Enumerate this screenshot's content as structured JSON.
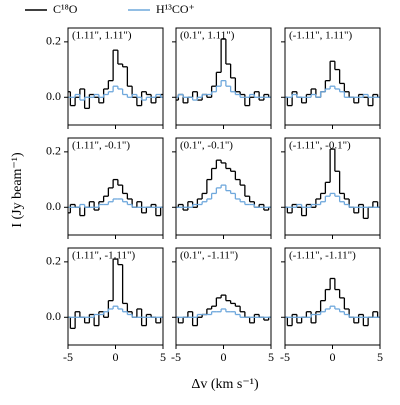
{
  "figure": {
    "xlabel": "Δv (km s⁻¹)",
    "ylabel": "I (Jy beam⁻¹)"
  },
  "chart_data": [
    {
      "type": "line",
      "drawstyle": "steps-mid",
      "title": "(1.11\", 1.11\")",
      "x": [
        -5,
        -4.5,
        -4,
        -3.5,
        -3,
        -2.5,
        -2,
        -1.5,
        -1,
        -0.5,
        0,
        0.5,
        1,
        1.5,
        2,
        2.5,
        3,
        3.5,
        4,
        4.5,
        5
      ],
      "series": [
        {
          "name": "C¹⁸O",
          "color": "#000000",
          "values": [
            0.02,
            -0.03,
            0.0,
            0.03,
            -0.04,
            0.01,
            0.0,
            -0.02,
            0.03,
            0.06,
            0.17,
            0.12,
            0.11,
            0.04,
            0.0,
            -0.03,
            0.02,
            0.01,
            -0.02,
            0.0,
            0.01
          ]
        },
        {
          "name": "H¹³CO⁺",
          "color": "#6fa8dc",
          "values": [
            0,
            0,
            0.01,
            -0.01,
            0,
            0,
            0.01,
            0,
            0.01,
            0.02,
            0.04,
            0.03,
            0.01,
            0,
            0.01,
            0,
            -0.01,
            0,
            0,
            0.01,
            0
          ]
        }
      ],
      "xlim": [
        -5,
        5
      ],
      "ylim": [
        -0.1,
        0.25
      ],
      "xticks": [
        -5,
        0,
        5
      ],
      "yticks": [
        {
          "value": 0,
          "label": "0.0"
        },
        0.2
      ]
    },
    {
      "type": "line",
      "drawstyle": "steps-mid",
      "title": "(0.1\", 1.11\")",
      "x": [
        -5,
        -4.5,
        -4,
        -3.5,
        -3,
        -2.5,
        -2,
        -1.5,
        -1,
        -0.5,
        0,
        0.5,
        1,
        1.5,
        2,
        2.5,
        3,
        3.5,
        4,
        4.5,
        5
      ],
      "series": [
        {
          "name": "C¹⁸O",
          "color": "#000000",
          "values": [
            -0.01,
            0.01,
            -0.02,
            0.0,
            0.02,
            -0.01,
            0.01,
            0.0,
            0.04,
            0.09,
            0.21,
            0.12,
            0.07,
            0.02,
            0.01,
            -0.03,
            0.0,
            0.02,
            -0.01,
            0.01,
            0.0
          ]
        },
        {
          "name": "H¹³CO⁺",
          "color": "#6fa8dc",
          "values": [
            0,
            0.01,
            0,
            0,
            -0.01,
            0,
            0.01,
            0.01,
            0.02,
            0.04,
            0.06,
            0.04,
            0.02,
            0.01,
            0,
            0,
            0.01,
            0,
            0,
            0,
            0
          ]
        }
      ],
      "xlim": [
        -5,
        5
      ],
      "ylim": [
        -0.1,
        0.25
      ],
      "xticks": [
        -5,
        0,
        5
      ],
      "yticks": [
        {
          "value": 0,
          "label": "0.0"
        },
        0.2
      ]
    },
    {
      "type": "line",
      "drawstyle": "steps-mid",
      "title": "(-1.11\", 1.11\")",
      "x": [
        -5,
        -4.5,
        -4,
        -3.5,
        -3,
        -2.5,
        -2,
        -1.5,
        -1,
        -0.5,
        0,
        0.5,
        1,
        1.5,
        2,
        2.5,
        3,
        3.5,
        4,
        4.5,
        5
      ],
      "series": [
        {
          "name": "C¹⁸O",
          "color": "#000000",
          "values": [
            0.0,
            -0.03,
            0.02,
            0.0,
            -0.02,
            0.01,
            0.03,
            0.0,
            0.02,
            0.06,
            0.13,
            0.1,
            0.05,
            0.02,
            0.0,
            -0.02,
            0.01,
            0.0,
            -0.03,
            0.01,
            0.0
          ]
        },
        {
          "name": "H¹³CO⁺",
          "color": "#6fa8dc",
          "values": [
            0,
            0,
            0.01,
            0,
            0,
            0,
            0.01,
            0,
            0.02,
            0.03,
            0.04,
            0.03,
            0.02,
            0,
            0,
            0,
            0,
            0.01,
            0,
            0,
            0
          ]
        }
      ],
      "xlim": [
        -5,
        5
      ],
      "ylim": [
        -0.1,
        0.25
      ],
      "xticks": [
        -5,
        0,
        5
      ],
      "yticks": [
        {
          "value": 0,
          "label": "0.0"
        },
        0.2
      ]
    },
    {
      "type": "line",
      "drawstyle": "steps-mid",
      "title": "(1.11\", -0.1\")",
      "x": [
        -5,
        -4.5,
        -4,
        -3.5,
        -3,
        -2.5,
        -2,
        -1.5,
        -1,
        -0.5,
        0,
        0.5,
        1,
        1.5,
        2,
        2.5,
        3,
        3.5,
        4,
        4.5,
        5
      ],
      "series": [
        {
          "name": "C¹⁸O",
          "color": "#000000",
          "values": [
            -0.02,
            0.01,
            0.0,
            -0.03,
            0.0,
            0.02,
            -0.01,
            0.02,
            0.04,
            0.07,
            0.1,
            0.08,
            0.05,
            0.03,
            0.0,
            0.02,
            -0.02,
            0.0,
            0.01,
            -0.03,
            0.0
          ]
        },
        {
          "name": "H¹³CO⁺",
          "color": "#6fa8dc",
          "values": [
            0,
            0,
            0,
            0.01,
            0,
            0,
            0,
            0.01,
            0.01,
            0.02,
            0.03,
            0.03,
            0.02,
            0.01,
            0,
            0,
            0,
            0,
            0,
            0,
            0
          ]
        }
      ],
      "xlim": [
        -5,
        5
      ],
      "ylim": [
        -0.1,
        0.25
      ],
      "xticks": [
        -5,
        0,
        5
      ],
      "yticks": [
        {
          "value": 0,
          "label": "0.0"
        },
        0.2
      ]
    },
    {
      "type": "line",
      "drawstyle": "steps-mid",
      "title": "(0.1\", -0.1\")",
      "x": [
        -5,
        -4.5,
        -4,
        -3.5,
        -3,
        -2.5,
        -2,
        -1.5,
        -1,
        -0.5,
        0,
        0.5,
        1,
        1.5,
        2,
        2.5,
        3,
        3.5,
        4,
        4.5,
        5
      ],
      "series": [
        {
          "name": "C¹⁸O",
          "color": "#000000",
          "values": [
            0.0,
            0.01,
            -0.01,
            0.02,
            0.0,
            0.03,
            0.05,
            0.1,
            0.14,
            0.17,
            0.16,
            0.14,
            0.13,
            0.1,
            0.08,
            0.04,
            0.02,
            0.0,
            0.01,
            -0.01,
            0.0
          ]
        },
        {
          "name": "H¹³CO⁺",
          "color": "#6fa8dc",
          "values": [
            0,
            0,
            0,
            0,
            0.01,
            0.01,
            0.02,
            0.03,
            0.05,
            0.07,
            0.08,
            0.06,
            0.05,
            0.03,
            0.02,
            0.01,
            0.01,
            0,
            0,
            0,
            0
          ]
        }
      ],
      "xlim": [
        -5,
        5
      ],
      "ylim": [
        -0.1,
        0.25
      ],
      "xticks": [
        -5,
        0,
        5
      ],
      "yticks": [
        {
          "value": 0,
          "label": "0.0"
        },
        0.2
      ]
    },
    {
      "type": "line",
      "drawstyle": "steps-mid",
      "title": "(-1.11\", -0.1\")",
      "x": [
        -5,
        -4.5,
        -4,
        -3.5,
        -3,
        -2.5,
        -2,
        -1.5,
        -1,
        -0.5,
        0,
        0.5,
        1,
        1.5,
        2,
        2.5,
        3,
        3.5,
        4,
        4.5,
        5
      ],
      "series": [
        {
          "name": "C¹⁸O",
          "color": "#000000",
          "values": [
            0.0,
            -0.02,
            0.01,
            0.0,
            -0.03,
            0.01,
            0.0,
            0.03,
            0.05,
            0.09,
            0.21,
            0.13,
            0.05,
            0.03,
            0.0,
            -0.02,
            0.01,
            -0.04,
            0.0,
            0.02,
            0.0
          ]
        },
        {
          "name": "H¹³CO⁺",
          "color": "#6fa8dc",
          "values": [
            0,
            0,
            0,
            0.01,
            0,
            0,
            0.01,
            0.01,
            0.02,
            0.04,
            0.05,
            0.04,
            0.02,
            0.01,
            0,
            0,
            0,
            0,
            0,
            0,
            0
          ]
        }
      ],
      "xlim": [
        -5,
        5
      ],
      "ylim": [
        -0.1,
        0.25
      ],
      "xticks": [
        -5,
        0,
        5
      ],
      "yticks": [
        {
          "value": 0,
          "label": "0.0"
        },
        0.2
      ]
    },
    {
      "type": "line",
      "drawstyle": "steps-mid",
      "title": "(1.11\", -1.11\")",
      "x": [
        -5,
        -4.5,
        -4,
        -3.5,
        -3,
        -2.5,
        -2,
        -1.5,
        -1,
        -0.5,
        0,
        0.5,
        1,
        1.5,
        2,
        2.5,
        3,
        3.5,
        4,
        4.5,
        5
      ],
      "series": [
        {
          "name": "C¹⁸O",
          "color": "#000000",
          "values": [
            0.0,
            -0.04,
            0.02,
            0.0,
            -0.02,
            0.01,
            -0.03,
            0.02,
            0.0,
            0.06,
            0.21,
            0.19,
            0.05,
            0.02,
            0.0,
            0.03,
            -0.03,
            0.01,
            0.0,
            -0.02,
            0.0
          ]
        },
        {
          "name": "H¹³CO⁺",
          "color": "#6fa8dc",
          "values": [
            0,
            0,
            0,
            0,
            0,
            0,
            0.01,
            0.01,
            0.02,
            0.03,
            0.04,
            0.03,
            0.02,
            0.01,
            0,
            0,
            0,
            0,
            0,
            0,
            0
          ]
        }
      ],
      "xlim": [
        -5,
        5
      ],
      "ylim": [
        -0.1,
        0.25
      ],
      "xticks": [
        -5,
        0,
        5
      ],
      "yticks": [
        {
          "value": 0,
          "label": "0.0"
        },
        0.2
      ]
    },
    {
      "type": "line",
      "drawstyle": "steps-mid",
      "title": "(0.1\", -1.11\")",
      "x": [
        -5,
        -4.5,
        -4,
        -3.5,
        -3,
        -2.5,
        -2,
        -1.5,
        -1,
        -0.5,
        0,
        0.5,
        1,
        1.5,
        2,
        2.5,
        3,
        3.5,
        4,
        4.5,
        5
      ],
      "series": [
        {
          "name": "C¹⁸O",
          "color": "#000000",
          "values": [
            0.0,
            -0.02,
            0.0,
            0.02,
            -0.03,
            0.0,
            0.01,
            0.03,
            0.04,
            0.07,
            0.08,
            0.06,
            0.05,
            0.04,
            0.02,
            0.0,
            -0.02,
            0.01,
            0.0,
            -0.01,
            0.0
          ]
        },
        {
          "name": "H¹³CO⁺",
          "color": "#6fa8dc",
          "values": [
            0,
            0,
            0,
            0,
            0,
            0.01,
            0.01,
            0.01,
            0.02,
            0.02,
            0.03,
            0.02,
            0.02,
            0.01,
            0,
            0,
            0,
            0,
            0,
            0,
            0
          ]
        }
      ],
      "xlim": [
        -5,
        5
      ],
      "ylim": [
        -0.1,
        0.25
      ],
      "xticks": [
        -5,
        0,
        5
      ],
      "yticks": [
        {
          "value": 0,
          "label": "0.0"
        },
        0.2
      ]
    },
    {
      "type": "line",
      "drawstyle": "steps-mid",
      "title": "(-1.11\", -1.11\")",
      "x": [
        -5,
        -4.5,
        -4,
        -3.5,
        -3,
        -2.5,
        -2,
        -1.5,
        -1,
        -0.5,
        0,
        0.5,
        1,
        1.5,
        2,
        2.5,
        3,
        3.5,
        4,
        4.5,
        5
      ],
      "series": [
        {
          "name": "C¹⁸O",
          "color": "#000000",
          "values": [
            0.0,
            -0.03,
            0.01,
            -0.02,
            0.0,
            0.02,
            -0.02,
            0.02,
            0.06,
            0.1,
            0.14,
            0.1,
            0.07,
            0.03,
            0.0,
            -0.02,
            0.01,
            -0.03,
            0.0,
            0.02,
            0.0
          ]
        },
        {
          "name": "H¹³CO⁺",
          "color": "#6fa8dc",
          "values": [
            0,
            0,
            0,
            0,
            0,
            0,
            0.01,
            0.01,
            0.02,
            0.03,
            0.04,
            0.03,
            0.02,
            0.01,
            0,
            0,
            0,
            0,
            0,
            0,
            0
          ]
        }
      ],
      "xlim": [
        -5,
        5
      ],
      "ylim": [
        -0.1,
        0.25
      ],
      "xticks": [
        -5,
        0,
        5
      ],
      "yticks": [
        {
          "value": 0,
          "label": "0.0"
        },
        0.2
      ]
    }
  ]
}
